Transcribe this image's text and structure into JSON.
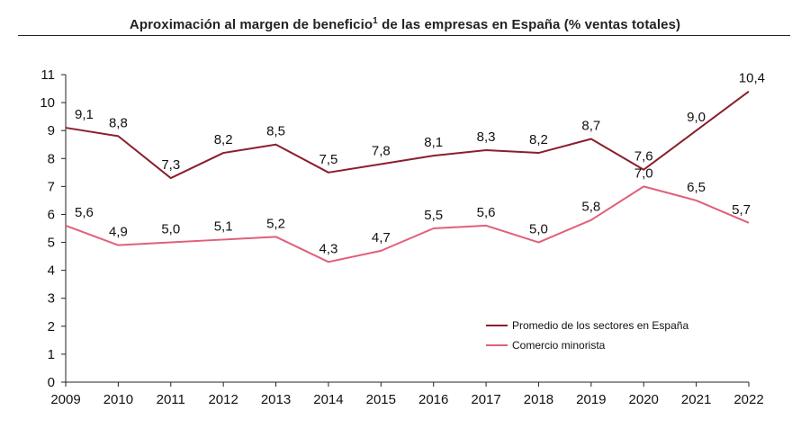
{
  "title": "Aproximación al margen de beneficio",
  "title_superscript": "1",
  "title_suffix": " de las empresas en España (% ventas totales)",
  "chart_data": {
    "type": "line",
    "title": "Aproximación al margen de beneficio1 de las empresas en España (% ventas totales)",
    "x": [
      "2009",
      "2010",
      "2011",
      "2012",
      "2013",
      "2014",
      "2015",
      "2016",
      "2017",
      "2018",
      "2019",
      "2020",
      "2021",
      "2022"
    ],
    "yticks": [
      "0",
      "1",
      "2",
      "3",
      "4",
      "5",
      "6",
      "7",
      "8",
      "9",
      "10",
      "11"
    ],
    "ylim": [
      0,
      11
    ],
    "xlabel": "",
    "ylabel": "",
    "grid": false,
    "legend_position": "bottom-right",
    "series": [
      {
        "name": "Promedio de los sectores en España",
        "color": "#8b1e2c",
        "values": [
          9.1,
          8.8,
          7.3,
          8.2,
          8.5,
          7.5,
          7.8,
          8.1,
          8.3,
          8.2,
          8.7,
          7.6,
          9.0,
          10.4
        ],
        "labels": [
          "9,1",
          "8,8",
          "7,3",
          "8,2",
          "8,5",
          "7,5",
          "7,8",
          "8,1",
          "8,3",
          "8,2",
          "8,7",
          "7,6",
          "9,0",
          "10,4"
        ]
      },
      {
        "name": "Comercio minorista",
        "color": "#e06078",
        "values": [
          5.6,
          4.9,
          5.0,
          5.1,
          5.2,
          4.3,
          4.7,
          5.5,
          5.6,
          5.0,
          5.8,
          7.0,
          6.5,
          5.7
        ],
        "labels": [
          "5,6",
          "4,9",
          "5,0",
          "5,1",
          "5,2",
          "4,3",
          "4,7",
          "5,5",
          "5,6",
          "5,0",
          "5,8",
          "7,0",
          "6,5",
          "5,7"
        ]
      }
    ]
  }
}
